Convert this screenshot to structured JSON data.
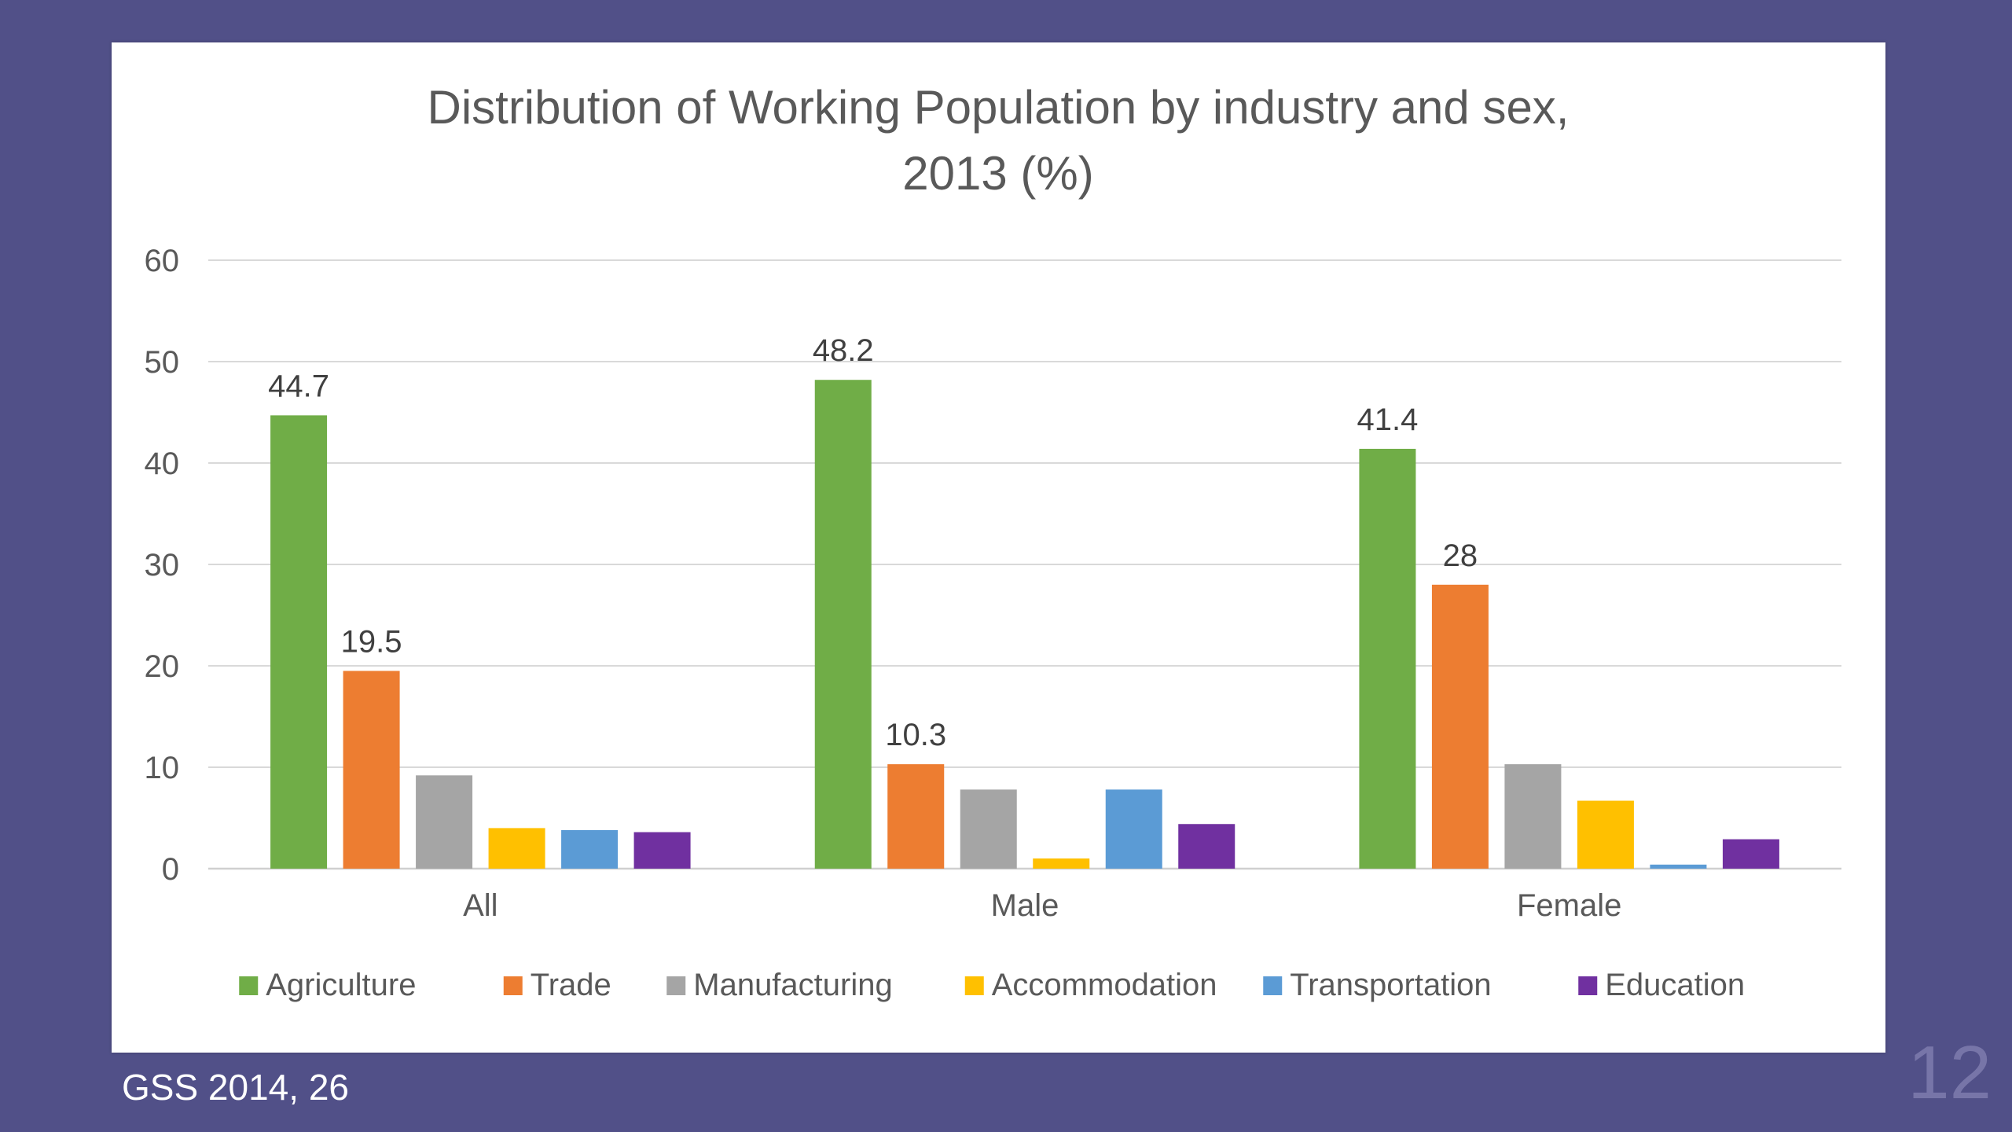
{
  "slide": {
    "source_note": "GSS 2014, 26",
    "page_number": "12",
    "background_color": "#515088"
  },
  "chart_data": {
    "type": "bar",
    "title_lines": [
      "Distribution of Working Population by industry and sex,",
      "2013 (%)"
    ],
    "categories": [
      "All",
      "Male",
      "Female"
    ],
    "ylim": [
      0,
      60
    ],
    "yticks": [
      0,
      10,
      20,
      30,
      40,
      50,
      60
    ],
    "grid": true,
    "legend_position": "bottom",
    "series": [
      {
        "name": "Agriculture",
        "color": "#70ad47",
        "values": [
          44.7,
          48.2,
          41.4
        ],
        "labels": [
          "44.7",
          "48.2",
          "41.4"
        ]
      },
      {
        "name": "Trade",
        "color": "#ed7d31",
        "values": [
          19.5,
          10.3,
          28
        ],
        "labels": [
          "19.5",
          "10.3",
          "28"
        ]
      },
      {
        "name": "Manufacturing",
        "color": "#a5a5a5",
        "values": [
          9.2,
          7.8,
          10.3
        ],
        "labels": [
          "",
          "",
          ""
        ]
      },
      {
        "name": "Accommodation",
        "color": "#ffc000",
        "values": [
          4.0,
          1.0,
          6.7
        ],
        "labels": [
          "",
          "",
          ""
        ]
      },
      {
        "name": "Transportation",
        "color": "#5b9bd5",
        "values": [
          3.8,
          7.8,
          0.4
        ],
        "labels": [
          "",
          "",
          ""
        ]
      },
      {
        "name": "Education",
        "color": "#7030a0",
        "values": [
          3.6,
          4.4,
          2.9
        ],
        "labels": [
          "",
          "",
          ""
        ]
      }
    ]
  }
}
